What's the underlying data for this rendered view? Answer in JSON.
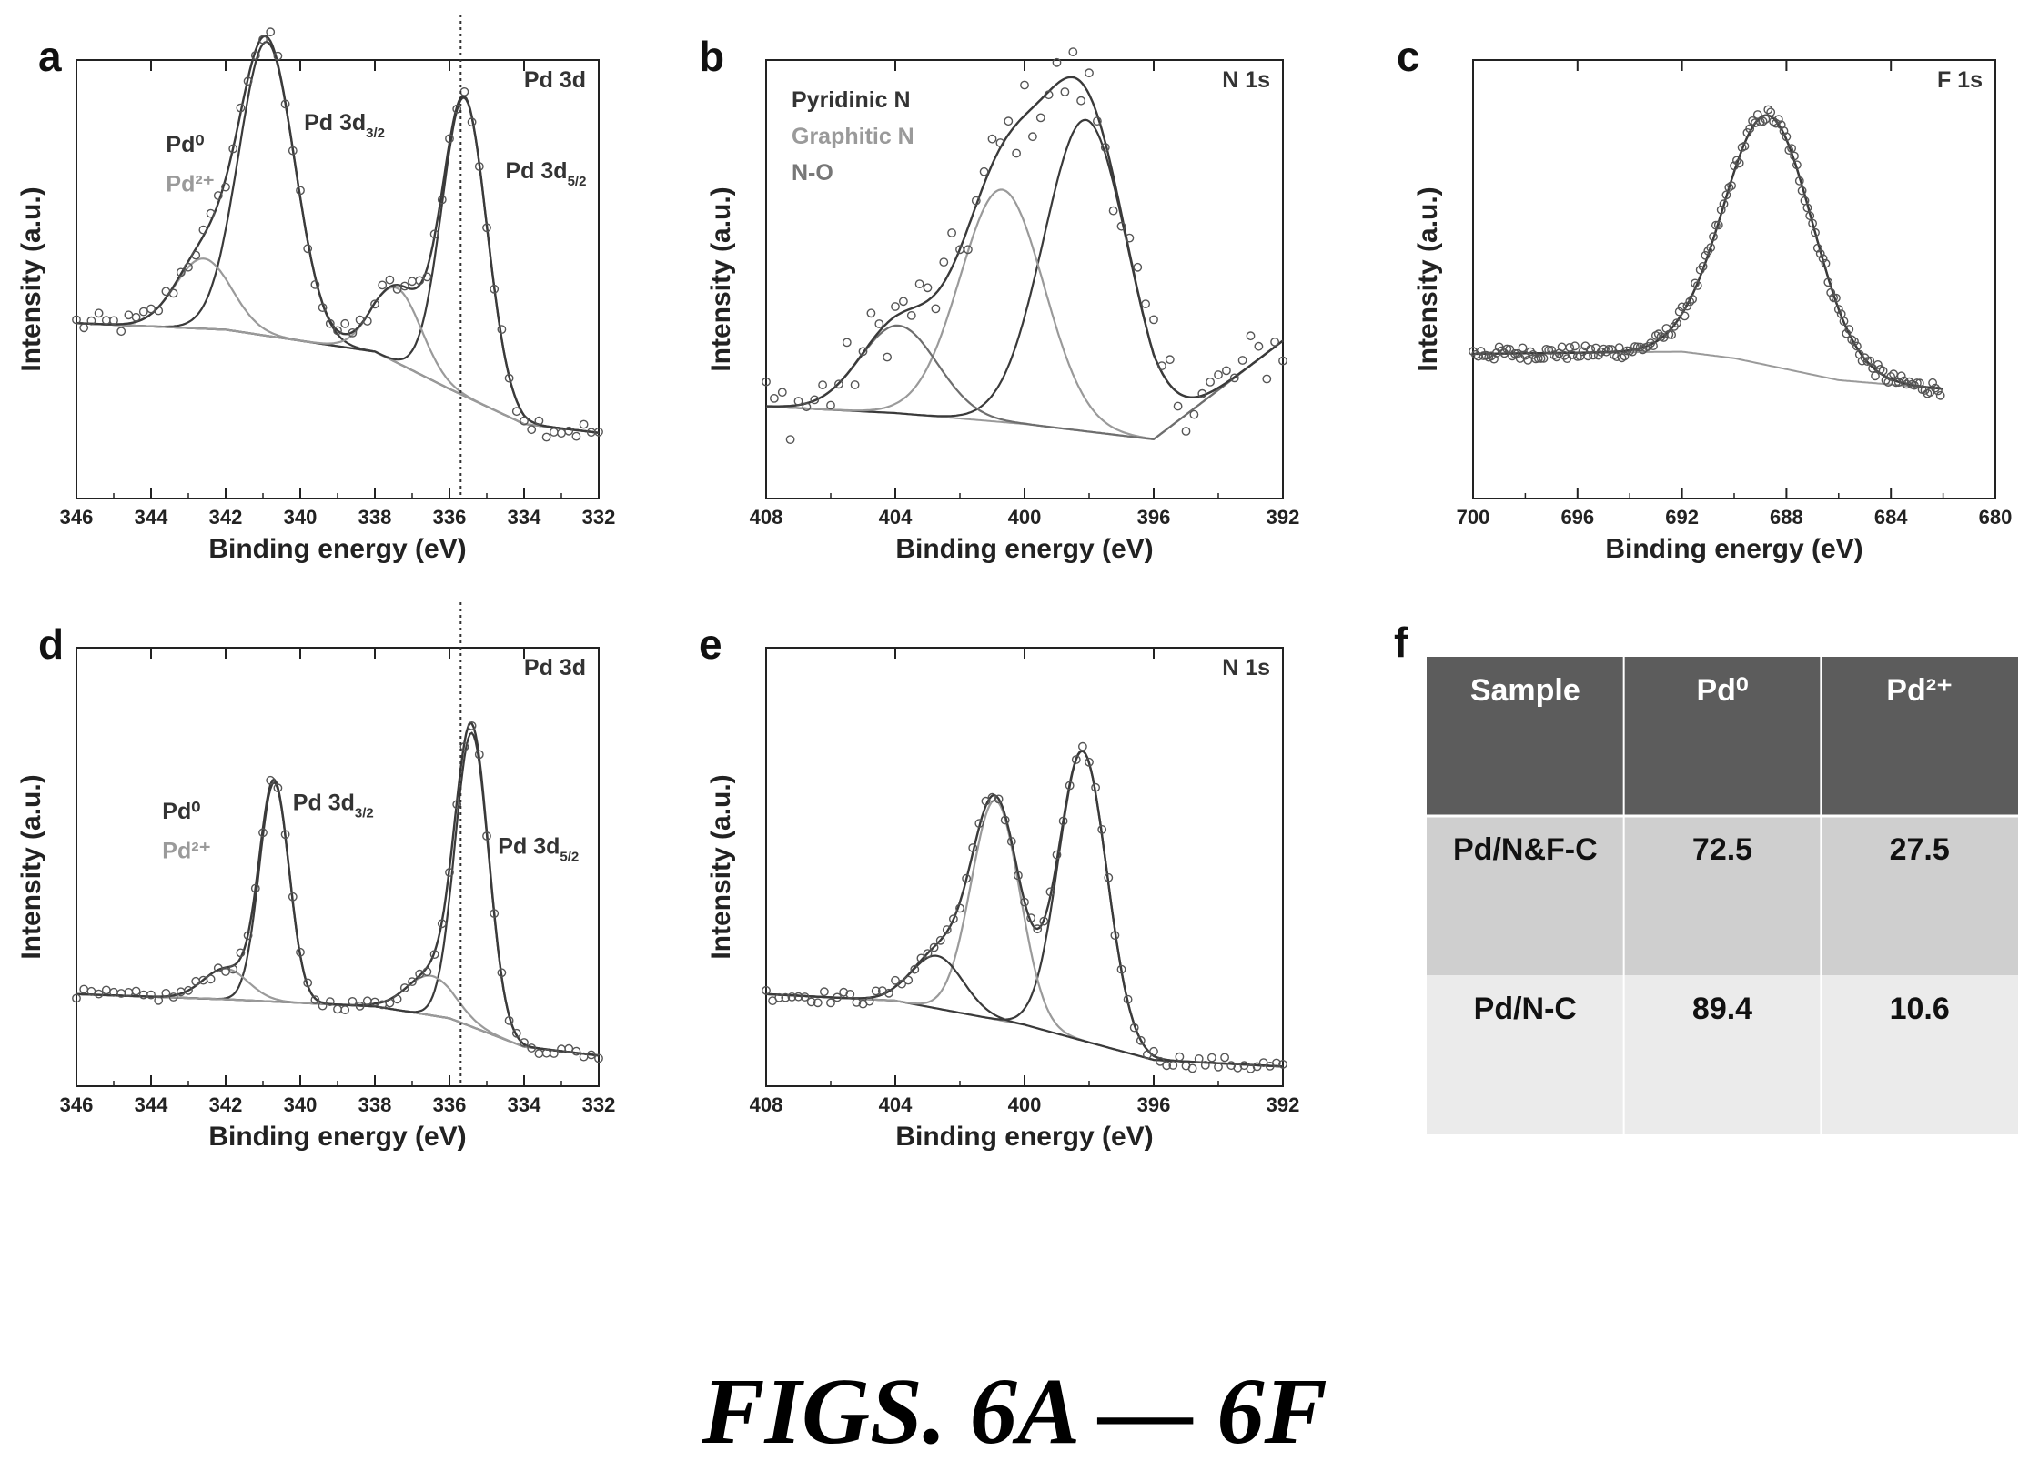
{
  "caption": "FIGS. 6A — 6F",
  "colors": {
    "axis": "#222222",
    "fit_dark": "#3a3a3a",
    "fit_light": "#9a9a9a",
    "marker": "#555555",
    "table_header": "#5c5c5c",
    "table_row1": "#cfcfcf",
    "table_row2": "#ebebeb"
  },
  "chart_data": [
    {
      "panel": "a",
      "type": "scatter",
      "title": "Pd 3d",
      "xlabel": "Binding energy (eV)",
      "ylabel": "Intensity (a.u.)",
      "xlim": [
        346,
        332
      ],
      "x_reversed": true,
      "xticks": [
        346,
        344,
        342,
        340,
        338,
        336,
        334,
        332
      ],
      "ylim": [
        0,
        100
      ],
      "y_ticklabels_shown": false,
      "annotations": [
        {
          "text": "Pd⁰",
          "x": 343.6,
          "y": 79,
          "style": "dark"
        },
        {
          "text": "Pd²⁺",
          "x": 343.6,
          "y": 70,
          "style": "grey"
        },
        {
          "text": "Pd 3d3/2",
          "x": 339.9,
          "y": 84,
          "style": "dark"
        },
        {
          "text": "Pd 3d5/2",
          "x": 334.5,
          "y": 73,
          "style": "dark"
        }
      ],
      "reference_line_x": 335.7,
      "background": {
        "x": [
          346,
          342,
          338,
          336,
          334,
          332
        ],
        "y": [
          40,
          38.5,
          33.5,
          25,
          17,
          15
        ]
      },
      "components": [
        {
          "name": "",
          "tone": "dark",
          "center": 340.9,
          "height": 67,
          "width": 0.75
        },
        {
          "name": "",
          "tone": "light",
          "center": 342.6,
          "height": 16,
          "width": 0.75
        },
        {
          "name": "",
          "tone": "dark",
          "center": 335.6,
          "height": 68,
          "width": 0.6
        },
        {
          "name": "",
          "tone": "light",
          "center": 337.4,
          "height": 17,
          "width": 0.65
        }
      ],
      "noise": 2.5,
      "marker_step": 0.2
    },
    {
      "panel": "b",
      "type": "scatter",
      "title": "N 1s",
      "xlabel": "Binding energy (eV)",
      "ylabel": "Intensity (a.u.)",
      "xlim": [
        408,
        392
      ],
      "x_reversed": true,
      "xticks": [
        408,
        404,
        400,
        396,
        392
      ],
      "ylim": [
        0,
        100
      ],
      "y_ticklabels_shown": false,
      "legend": [
        {
          "text": "Pyridinic N",
          "style": "dark"
        },
        {
          "text": "Graphitic N",
          "style": "grey"
        },
        {
          "text": "N-O",
          "style": "mid"
        }
      ],
      "background": {
        "x": [
          408,
          404,
          400,
          396,
          392
        ],
        "y": [
          21,
          19.5,
          17,
          13.5,
          36
        ]
      },
      "components": [
        {
          "name": "",
          "tone": "dark",
          "center": 398.1,
          "height": 71,
          "width": 1.3
        },
        {
          "name": "",
          "tone": "light",
          "center": 400.7,
          "height": 53,
          "width": 1.3
        },
        {
          "name": "",
          "tone": "mid",
          "center": 403.9,
          "height": 20,
          "width": 1.2
        }
      ],
      "noise": 8,
      "marker_step": 0.25
    },
    {
      "panel": "c",
      "type": "scatter",
      "title": "F 1s",
      "xlabel": "Binding energy (eV)",
      "ylabel": "Intensity (a.u.)",
      "xlim": [
        700,
        680
      ],
      "x_reversed": true,
      "xticks": [
        700,
        696,
        692,
        688,
        684,
        680
      ],
      "ylim": [
        0,
        100
      ],
      "y_ticklabels_shown": false,
      "data_range": [
        700,
        682
      ],
      "background": {
        "x": [
          700,
          692,
          690,
          686,
          682
        ],
        "y": [
          33,
          33.5,
          32,
          27,
          25
        ]
      },
      "components": [
        {
          "name": "",
          "tone": "dark",
          "center": 688.7,
          "height": 57,
          "width": 1.7
        }
      ],
      "noise": 1.6,
      "marker_step": 0.1
    },
    {
      "panel": "d",
      "type": "scatter",
      "title": "Pd 3d",
      "xlabel": "Binding energy (eV)",
      "ylabel": "Intensity (a.u.)",
      "xlim": [
        346,
        332
      ],
      "x_reversed": true,
      "xticks": [
        346,
        344,
        342,
        340,
        338,
        336,
        334,
        332
      ],
      "ylim": [
        0,
        100
      ],
      "y_ticklabels_shown": false,
      "annotations": [
        {
          "text": "Pd⁰",
          "x": 343.7,
          "y": 61,
          "style": "dark"
        },
        {
          "text": "Pd²⁺",
          "x": 343.7,
          "y": 52,
          "style": "grey"
        },
        {
          "text": "Pd 3d3/2",
          "x": 340.2,
          "y": 63,
          "style": "dark"
        },
        {
          "text": "Pd 3d5/2",
          "x": 334.7,
          "y": 53,
          "style": "dark"
        }
      ],
      "reference_line_x": 335.7,
      "background": {
        "x": [
          346,
          342,
          338,
          336,
          334,
          332
        ],
        "y": [
          21,
          19.8,
          18.2,
          15.5,
          9,
          7
        ]
      },
      "components": [
        {
          "name": "",
          "tone": "dark",
          "center": 340.7,
          "height": 50,
          "width": 0.4
        },
        {
          "name": "",
          "tone": "light",
          "center": 342.0,
          "height": 7,
          "width": 0.6
        },
        {
          "name": "",
          "tone": "dark",
          "center": 335.4,
          "height": 67,
          "width": 0.45
        },
        {
          "name": "",
          "tone": "light",
          "center": 336.5,
          "height": 9,
          "width": 0.65
        }
      ],
      "noise": 1.2,
      "marker_step": 0.2
    },
    {
      "panel": "e",
      "type": "scatter",
      "title": "N 1s",
      "xlabel": "Binding energy (eV)",
      "ylabel": "Intensity (a.u.)",
      "xlim": [
        408,
        392
      ],
      "x_reversed": true,
      "xticks": [
        408,
        404,
        400,
        396,
        392
      ],
      "ylim": [
        0,
        100
      ],
      "y_ticklabels_shown": false,
      "background": {
        "x": [
          408,
          404,
          400,
          396,
          392
        ],
        "y": [
          21,
          19.5,
          14,
          6,
          4.5
        ]
      },
      "components": [
        {
          "name": "",
          "tone": "dark",
          "center": 398.2,
          "height": 66,
          "width": 0.75
        },
        {
          "name": "",
          "tone": "light",
          "center": 400.9,
          "height": 50,
          "width": 0.75
        },
        {
          "name": "",
          "tone": "dark",
          "center": 402.7,
          "height": 12,
          "width": 0.8
        }
      ],
      "noise": 1.5,
      "marker_step": 0.2
    },
    {
      "panel": "f",
      "type": "table",
      "columns": [
        "Sample",
        "Pd⁰",
        "Pd²⁺"
      ],
      "rows": [
        [
          "Pd/N&F-C",
          "72.5",
          "27.5"
        ],
        [
          "Pd/N-C",
          "89.4",
          "10.6"
        ]
      ]
    }
  ]
}
